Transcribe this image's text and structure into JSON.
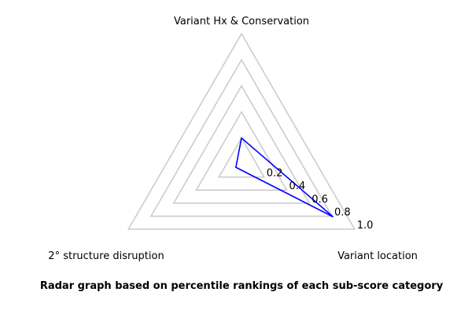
{
  "chart_data": {
    "type": "radar",
    "axes": [
      "Variant Hx & Conservation",
      "Variant location",
      "2° structure disruption"
    ],
    "ticks": [
      0.2,
      0.4,
      0.6,
      0.8,
      1.0
    ],
    "tick_labels": [
      "0.2",
      "0.4",
      "0.6",
      "0.8",
      "1.0"
    ],
    "range": [
      0,
      1.0
    ],
    "grid": true,
    "series": [
      {
        "values": [
          0.2,
          0.81,
          0.05
        ],
        "color": "#0000ff"
      }
    ],
    "grid_color": "#cccccc"
  },
  "caption": "Radar graph based on percentile rankings of each sub-score category"
}
